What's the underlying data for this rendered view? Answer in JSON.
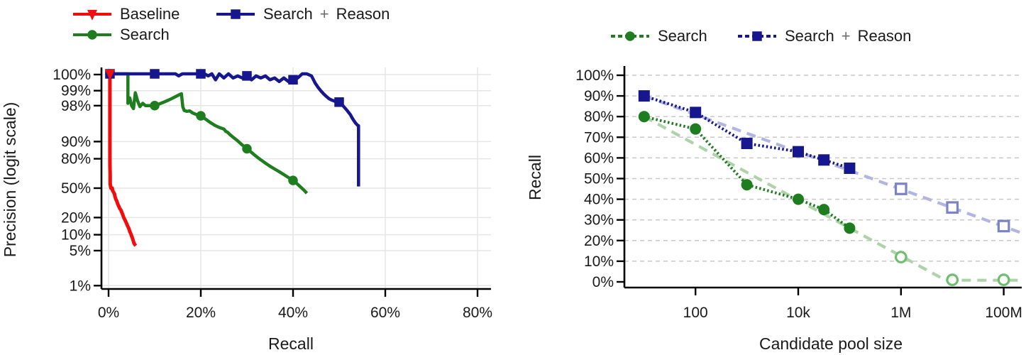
{
  "figure": {
    "description": "Two-panel line chart figure"
  },
  "chart_data": [
    {
      "type": "line",
      "title": "",
      "xlabel": "Recall",
      "ylabel": "Precision (logit scale)",
      "y_scale": "logit",
      "x_scale": "linear",
      "xlim_pct": [
        0,
        83
      ],
      "x_ticks": [
        {
          "v": 0,
          "label": "0%"
        },
        {
          "v": 20,
          "label": "20%"
        },
        {
          "v": 40,
          "label": "40%"
        },
        {
          "v": 60,
          "label": "60%"
        },
        {
          "v": 80,
          "label": "80%"
        }
      ],
      "y_ticks": [
        {
          "v": 100,
          "label": "100%"
        },
        {
          "v": 99,
          "label": "99%"
        },
        {
          "v": 98,
          "label": "98%"
        },
        {
          "v": 90,
          "label": "90%"
        },
        {
          "v": 80,
          "label": "80%"
        },
        {
          "v": 50,
          "label": "50%"
        },
        {
          "v": 20,
          "label": "20%"
        },
        {
          "v": 10,
          "label": "10%"
        },
        {
          "v": 5,
          "label": "5%"
        },
        {
          "v": 1,
          "label": "1%"
        }
      ],
      "grid": "both",
      "legend_position": "above-left",
      "legend": [
        {
          "label": "Baseline",
          "marker": "triangle-down",
          "color": "#f20d0d",
          "dashed": false
        },
        {
          "label": "Search + Reason",
          "marker": "square",
          "color": "#16168f",
          "dashed": false
        },
        {
          "label": "Search",
          "marker": "circle",
          "color": "#1e7d1e",
          "dashed": false
        }
      ],
      "series": [
        {
          "name": "Baseline",
          "color": "#f20d0d",
          "marker": "triangle-down",
          "line": [
            [
              0.3,
              99.8
            ],
            [
              0.3,
              75
            ],
            [
              0.35,
              65
            ],
            [
              0.35,
              55
            ],
            [
              0.45,
              52
            ],
            [
              0.5,
              50
            ],
            [
              0.8,
              50
            ],
            [
              0.85,
              48
            ],
            [
              0.9,
              47
            ],
            [
              1.1,
              45
            ],
            [
              1.3,
              43
            ],
            [
              1.4,
              40
            ],
            [
              1.6,
              37
            ],
            [
              1.8,
              35
            ],
            [
              2.0,
              32
            ],
            [
              2.2,
              30
            ],
            [
              2.4,
              28
            ],
            [
              2.7,
              26
            ],
            [
              2.9,
              24
            ],
            [
              3.1,
              22
            ],
            [
              3.3,
              20
            ],
            [
              3.6,
              18
            ],
            [
              3.9,
              16
            ],
            [
              4.1,
              14.5
            ],
            [
              4.4,
              13
            ],
            [
              4.6,
              11.5
            ],
            [
              4.8,
              10.5
            ],
            [
              5.0,
              9.5
            ],
            [
              5.2,
              8.5
            ],
            [
              5.4,
              7.5
            ],
            [
              5.5,
              7
            ],
            [
              5.7,
              6.5
            ],
            [
              5.9,
              6.2
            ]
          ],
          "marker_points": [
            [
              0.3,
              99.8
            ]
          ]
        },
        {
          "name": "Search",
          "color": "#1e7d1e",
          "marker": "circle",
          "line": [
            [
              0.3,
              100
            ],
            [
              4.2,
              100
            ],
            [
              4.2,
              98.2
            ],
            [
              4.6,
              98.6
            ],
            [
              5.0,
              98.0
            ],
            [
              5.4,
              97.7
            ],
            [
              5.8,
              98.9
            ],
            [
              6.3,
              98.4
            ],
            [
              6.8,
              97.9
            ],
            [
              7.4,
              98.2
            ],
            [
              8.0,
              98.0
            ],
            [
              9.0,
              98.0
            ],
            [
              10,
              98.0
            ],
            [
              11,
              98.15
            ],
            [
              12,
              98.3
            ],
            [
              13,
              98.45
            ],
            [
              14,
              98.6
            ],
            [
              15,
              98.75
            ],
            [
              15.8,
              98.85
            ],
            [
              16.1,
              97.9
            ],
            [
              16.4,
              97.5
            ],
            [
              17,
              97.4
            ],
            [
              17.6,
              97.45
            ],
            [
              18.2,
              97.2
            ],
            [
              19,
              97.0
            ],
            [
              20,
              96.8
            ],
            [
              21,
              96.3
            ],
            [
              22,
              95.7
            ],
            [
              23,
              95.1
            ],
            [
              24,
              94.6
            ],
            [
              25,
              94.2
            ],
            [
              25.4,
              93.6
            ],
            [
              25.8,
              93.3
            ],
            [
              26.3,
              92.6
            ],
            [
              27,
              91.7
            ],
            [
              28,
              90.3
            ],
            [
              29,
              88.4
            ],
            [
              30,
              86.5
            ],
            [
              31,
              84.3
            ],
            [
              32,
              81.8
            ],
            [
              33,
              79.2
            ],
            [
              34,
              76.5
            ],
            [
              35,
              73.8
            ],
            [
              36,
              71.2
            ],
            [
              37,
              68.5
            ],
            [
              38,
              65.5
            ],
            [
              39,
              62.3
            ],
            [
              40,
              59
            ],
            [
              40.8,
              55.5
            ],
            [
              41.6,
              51.5
            ],
            [
              42.4,
              47.5
            ],
            [
              43,
              44
            ]
          ],
          "marker_points": [
            [
              0.3,
              100
            ],
            [
              10,
              98.0
            ],
            [
              20,
              96.8
            ],
            [
              30,
              86.5
            ],
            [
              40,
              59
            ]
          ]
        },
        {
          "name": "Search + Reason",
          "color": "#16168f",
          "marker": "square",
          "line": [
            [
              0.3,
              100
            ],
            [
              10,
              100
            ],
            [
              13.5,
              99.95
            ],
            [
              14.5,
              99.6
            ],
            [
              15.2,
              99.5
            ],
            [
              16,
              99.85
            ],
            [
              17,
              99.9
            ],
            [
              18.5,
              99.95
            ],
            [
              20,
              99.95
            ],
            [
              20.8,
              99.7
            ],
            [
              21.6,
              99.5
            ],
            [
              22.4,
              99.65
            ],
            [
              23.2,
              99.4
            ],
            [
              24,
              99.55
            ],
            [
              25,
              99.45
            ],
            [
              26,
              99.55
            ],
            [
              27,
              99.45
            ],
            [
              28,
              99.5
            ],
            [
              29,
              99.45
            ],
            [
              30,
              99.5
            ],
            [
              31,
              99.4
            ],
            [
              32,
              99.5
            ],
            [
              33,
              99.45
            ],
            [
              34,
              99.5
            ],
            [
              35,
              99.4
            ],
            [
              36,
              99.45
            ],
            [
              37,
              99.35
            ],
            [
              38,
              99.45
            ],
            [
              39,
              99.35
            ],
            [
              40,
              99.4
            ],
            [
              41,
              99.45
            ],
            [
              42,
              99.55
            ],
            [
              43,
              99.6
            ],
            [
              44,
              99.5
            ],
            [
              44.8,
              99.3
            ],
            [
              45.4,
              99.15
            ],
            [
              46,
              99.0
            ],
            [
              46.6,
              98.85
            ],
            [
              47.2,
              98.7
            ],
            [
              47.8,
              98.55
            ],
            [
              48.4,
              98.45
            ],
            [
              49.2,
              98.35
            ],
            [
              50,
              98.3
            ],
            [
              50.6,
              98.1
            ],
            [
              51.2,
              97.8
            ],
            [
              51.8,
              97.45
            ],
            [
              52.4,
              97.0
            ],
            [
              52.8,
              96.5
            ],
            [
              53.2,
              96.0
            ],
            [
              53.6,
              95.5
            ],
            [
              54.0,
              95.1
            ],
            [
              54.2,
              95.0
            ],
            [
              54.2,
              52
            ]
          ],
          "marker_points": [
            [
              0.3,
              100
            ],
            [
              10,
              100
            ],
            [
              20,
              99.95
            ],
            [
              30,
              99.5
            ],
            [
              40,
              99.4
            ],
            [
              50,
              98.3
            ]
          ]
        }
      ]
    },
    {
      "type": "line",
      "title": "",
      "xlabel": "Candidate pool size",
      "ylabel": "Recall",
      "y_scale": "linear",
      "x_scale": "log",
      "ylim": [
        0,
        100
      ],
      "x_ticks": [
        {
          "v": 100,
          "label": "100"
        },
        {
          "v": 10000,
          "label": "10k"
        },
        {
          "v": 1000000,
          "label": "1M"
        },
        {
          "v": 100000000,
          "label": "100M"
        }
      ],
      "y_ticks": [
        {
          "v": 100,
          "label": "100%"
        },
        {
          "v": 90,
          "label": "90%"
        },
        {
          "v": 80,
          "label": "80%"
        },
        {
          "v": 70,
          "label": "70%"
        },
        {
          "v": 60,
          "label": "60%"
        },
        {
          "v": 50,
          "label": "50%"
        },
        {
          "v": 40,
          "label": "40%"
        },
        {
          "v": 30,
          "label": "30%"
        },
        {
          "v": 20,
          "label": "20%"
        },
        {
          "v": 10,
          "label": "10%"
        },
        {
          "v": 0,
          "label": "0%"
        }
      ],
      "grid": "horizontal-dashed",
      "legend_position": "above-center",
      "legend": [
        {
          "label": "Search",
          "marker": "circle",
          "color": "#1e7d1e",
          "dashed": true
        },
        {
          "label": "Search + Reason",
          "marker": "square",
          "color": "#16168f",
          "dashed": true
        }
      ],
      "series": [
        {
          "name": "Search",
          "color": "#1e7d1e",
          "marker": "circle",
          "hollow_color": "#6fbe6f",
          "trend_color": "#aed3a9",
          "trend_line": [
            [
              10,
              80
            ],
            [
              7400000,
              0.8
            ],
            [
              220000000,
              0.8
            ]
          ],
          "solid_points": [
            [
              10,
              80
            ],
            [
              100,
              74
            ],
            [
              1000,
              47
            ],
            [
              10000,
              40
            ],
            [
              31600,
              35
            ],
            [
              100000,
              26
            ]
          ],
          "hollow_points": [
            [
              1000000,
              12
            ],
            [
              10000000,
              1
            ],
            [
              100000000,
              1
            ]
          ]
        },
        {
          "name": "Search + Reason",
          "color": "#16168f",
          "marker": "square",
          "hollow_color": "#7b82c9",
          "trend_color": "#b2b5e2",
          "trend_line": [
            [
              10,
              90
            ],
            [
              220000000,
              23.7
            ]
          ],
          "solid_points": [
            [
              10,
              90
            ],
            [
              100,
              82
            ],
            [
              1000,
              67
            ],
            [
              10000,
              63
            ],
            [
              31600,
              59
            ],
            [
              100000,
              55
            ]
          ],
          "hollow_points": [
            [
              1000000,
              45
            ],
            [
              10000000,
              36
            ],
            [
              100000000,
              27
            ]
          ]
        }
      ]
    }
  ]
}
